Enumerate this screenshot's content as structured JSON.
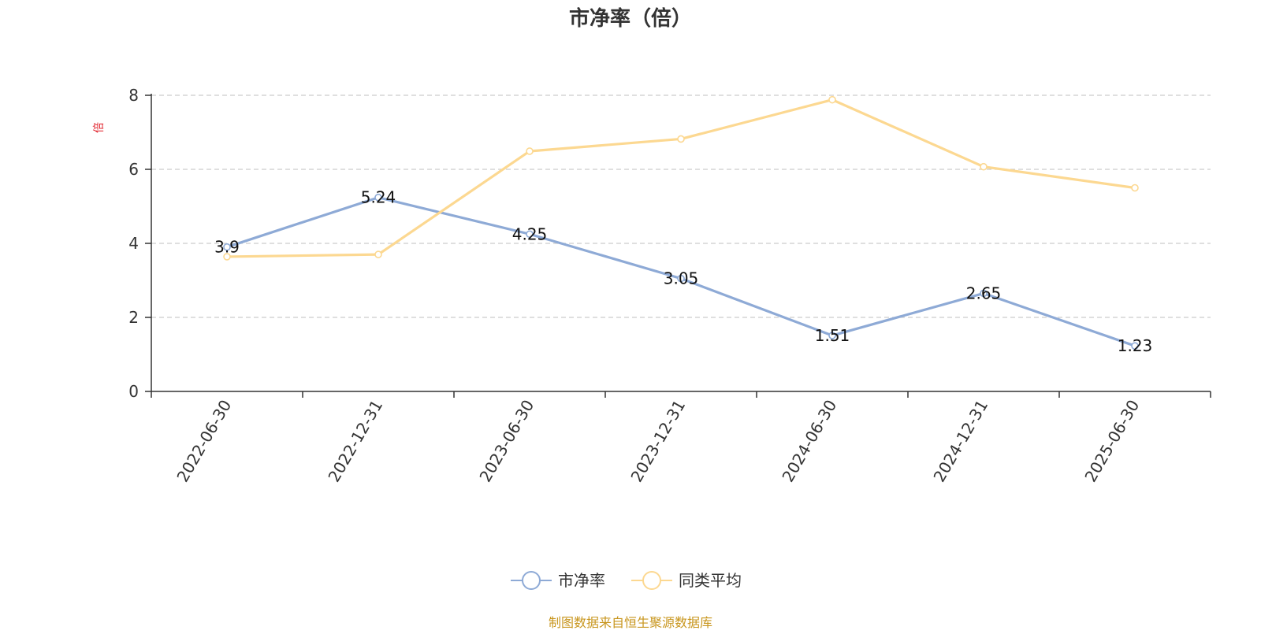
{
  "chart_data": {
    "type": "line",
    "title": "市净率（倍）",
    "ylabel": "倍",
    "xlabel": "",
    "categories": [
      "2022-06-30",
      "2022-12-31",
      "2023-06-30",
      "2023-12-31",
      "2024-06-30",
      "2024-12-31",
      "2025-06-30"
    ],
    "ylim": [
      0,
      8
    ],
    "yticks": [
      "0",
      "2",
      "4",
      "6",
      "8"
    ],
    "grid": true,
    "legend_position": "bottom-center",
    "series": [
      {
        "name": "市净率",
        "color": "#8eaad6",
        "values": [
          3.9,
          5.24,
          4.25,
          3.05,
          1.51,
          2.65,
          1.23
        ],
        "data_labels": [
          "3.9",
          "5.24",
          "4.25",
          "3.05",
          "1.51",
          "2.65",
          "1.23"
        ]
      },
      {
        "name": "同类平均",
        "color": "#fcd891",
        "values": [
          3.64,
          3.7,
          6.49,
          6.82,
          7.88,
          6.07,
          5.5
        ]
      }
    ],
    "source_note": "制图数据来自恒生聚源数据库"
  }
}
